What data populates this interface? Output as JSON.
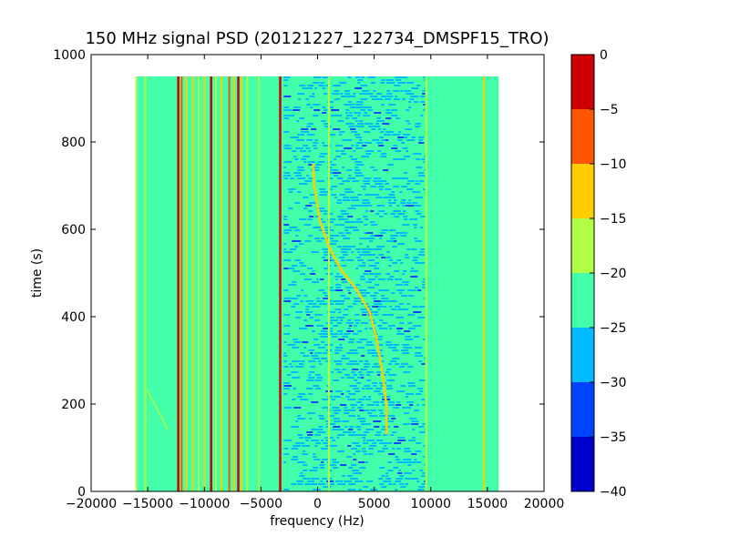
{
  "chart_data": {
    "type": "heatmap",
    "title": "150 MHz signal PSD (20121227_122734_DMSPF15_TRO)",
    "xlabel": "frequency (Hz)",
    "ylabel": "time (s)",
    "xlim": [
      -20000,
      20000
    ],
    "ylim": [
      0,
      1000
    ],
    "xticks": [
      -20000,
      -15000,
      -10000,
      -5000,
      0,
      5000,
      10000,
      15000,
      20000
    ],
    "xtick_labels": [
      "−20000",
      "−15000",
      "−10000",
      "−5000",
      "0",
      "5000",
      "10000",
      "15000",
      "20000"
    ],
    "yticks": [
      0,
      200,
      400,
      600,
      800,
      1000
    ],
    "ytick_labels": [
      "0",
      "200",
      "400",
      "600",
      "800",
      "1000"
    ],
    "data_extent": {
      "x": [
        -16000,
        16000
      ],
      "y": [
        0,
        950
      ]
    },
    "background_level": -22.5,
    "colorbar": {
      "levels": [
        -40,
        -35,
        -30,
        -25,
        -20,
        -15,
        -10,
        -5,
        0
      ],
      "tick_labels": [
        "−40",
        "−35",
        "−30",
        "−25",
        "−20",
        "−15",
        "−10",
        "−5",
        "0"
      ],
      "colors": [
        "#0000cc",
        "#0044ff",
        "#00bbff",
        "#44ffaa",
        "#b0ff44",
        "#ffcc00",
        "#ff5500",
        "#cc0000"
      ]
    },
    "noise_region": {
      "x": [
        -3000,
        9500
      ],
      "y": [
        0,
        950
      ]
    },
    "vertical_lines": [
      {
        "x": -16000,
        "level": -17.5
      },
      {
        "x": -15200,
        "level": -17.5
      },
      {
        "x": -12300,
        "level": -2.5
      },
      {
        "x": -12000,
        "level": -7.5
      },
      {
        "x": -11600,
        "level": -12.5
      },
      {
        "x": -11000,
        "level": -12.5
      },
      {
        "x": -10500,
        "level": -17.5
      },
      {
        "x": -10000,
        "level": -12.5
      },
      {
        "x": -9400,
        "level": -2.5
      },
      {
        "x": -9000,
        "level": -17.5
      },
      {
        "x": -8500,
        "level": -12.5
      },
      {
        "x": -7800,
        "level": -7.5
      },
      {
        "x": -7400,
        "level": -12.5
      },
      {
        "x": -7000,
        "level": -2.5
      },
      {
        "x": -6700,
        "level": -12.5
      },
      {
        "x": -6200,
        "level": -17.5
      },
      {
        "x": -5200,
        "level": -17.5
      },
      {
        "x": -3300,
        "level": -2.5
      },
      {
        "x": 1000,
        "level": -17.5
      },
      {
        "x": 9600,
        "level": -17.5
      },
      {
        "x": 14700,
        "level": -12.5
      }
    ],
    "doppler_trace": {
      "level": -12.5,
      "points": [
        [
          -400,
          750
        ],
        [
          -300,
          700
        ],
        [
          200,
          620
        ],
        [
          1000,
          560
        ],
        [
          2000,
          510
        ],
        [
          3500,
          460
        ],
        [
          4600,
          410
        ],
        [
          5200,
          350
        ],
        [
          5800,
          260
        ],
        [
          6100,
          190
        ],
        [
          6100,
          130
        ]
      ]
    },
    "faint_trace": {
      "level": -17.5,
      "points": [
        [
          -15000,
          230
        ],
        [
          -14000,
          180
        ],
        [
          -13200,
          140
        ]
      ]
    }
  }
}
